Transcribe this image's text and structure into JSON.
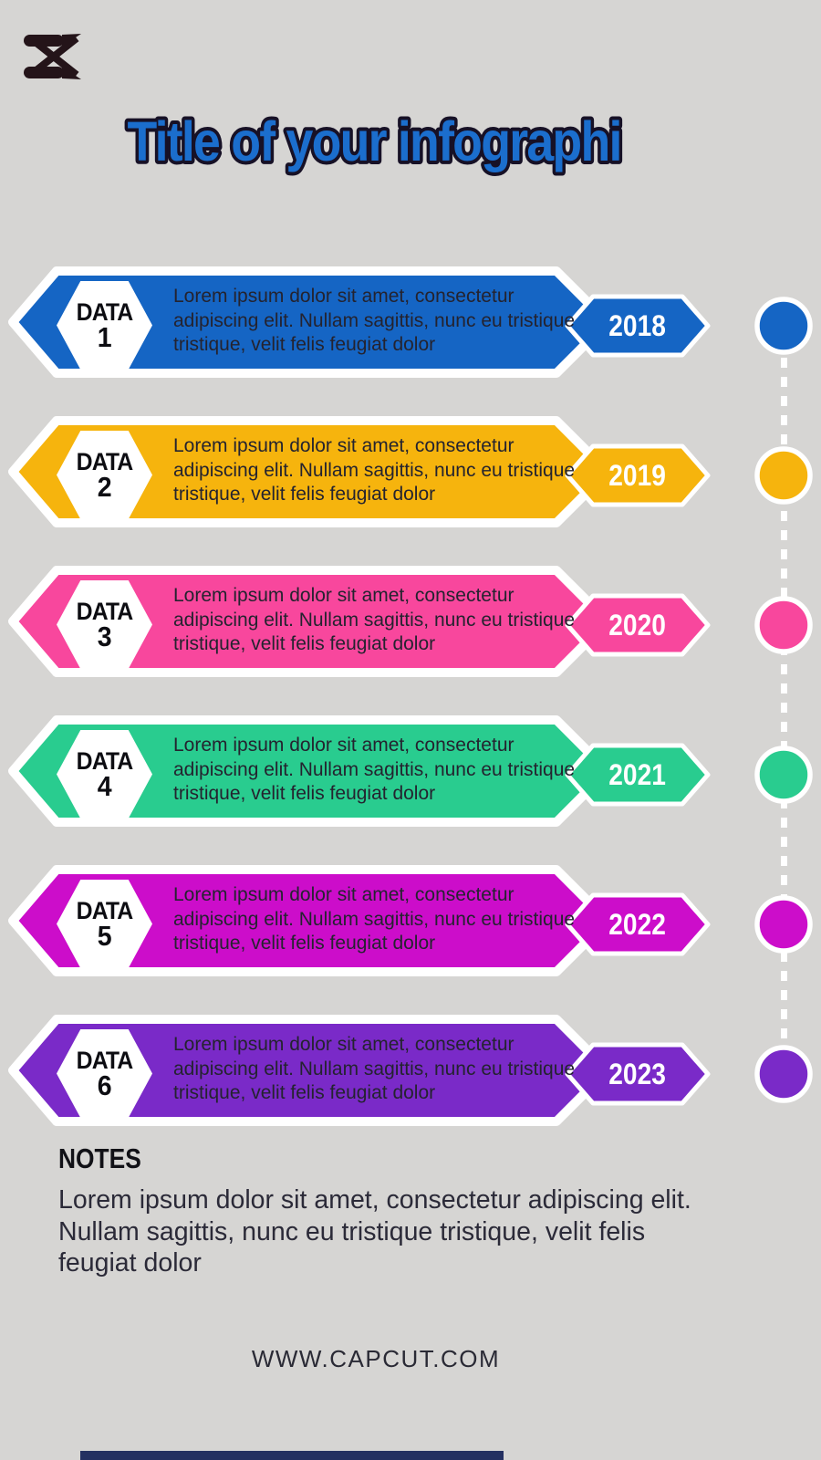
{
  "page": {
    "background": "#d6d5d3"
  },
  "logo": {
    "name": "capcut-logo",
    "color": "#241419"
  },
  "title": {
    "text": "Title of your infographi",
    "fill": "#1b6ecd",
    "outline": "#171126"
  },
  "timeline": {
    "connector_color": "#ffffff",
    "items": [
      {
        "label": "DATA",
        "number": "1",
        "year": "2018",
        "color": "#1565c4",
        "description": "Lorem ipsum dolor sit amet, consectetur adipiscing elit. Nullam sagittis, nunc eu tristique tristique, velit felis feugiat dolor"
      },
      {
        "label": "DATA",
        "number": "2",
        "year": "2019",
        "color": "#f6b40d",
        "description": "Lorem ipsum dolor sit amet, consectetur adipiscing elit. Nullam sagittis, nunc eu tristique tristique, velit felis feugiat dolor"
      },
      {
        "label": "DATA",
        "number": "3",
        "year": "2020",
        "color": "#f8479d",
        "description": "Lorem ipsum dolor sit amet, consectetur adipiscing elit. Nullam sagittis, nunc eu tristique tristique, velit felis feugiat dolor"
      },
      {
        "label": "DATA",
        "number": "4",
        "year": "2021",
        "color": "#29cc8f",
        "description": "Lorem ipsum dolor sit amet, consectetur adipiscing elit. Nullam sagittis, nunc eu tristique tristique, velit felis feugiat dolor"
      },
      {
        "label": "DATA",
        "number": "5",
        "year": "2022",
        "color": "#cc0dca",
        "description": "Lorem ipsum dolor sit amet, consectetur adipiscing elit. Nullam sagittis, nunc eu tristique tristique, velit felis feugiat dolor"
      },
      {
        "label": "DATA",
        "number": "6",
        "year": "2023",
        "color": "#7a2ac8",
        "description": "Lorem ipsum dolor sit amet, consectetur adipiscing elit. Nullam sagittis, nunc eu tristique tristique, velit felis feugiat dolor"
      }
    ]
  },
  "notes": {
    "heading": "NOTES",
    "body": "Lorem ipsum dolor sit amet, consectetur adipiscing elit. Nullam sagittis, nunc eu tristique tristique, velit felis feugiat dolor"
  },
  "footer": {
    "website": "WWW.CAPCUT.COM",
    "bar_color": "#243061"
  }
}
